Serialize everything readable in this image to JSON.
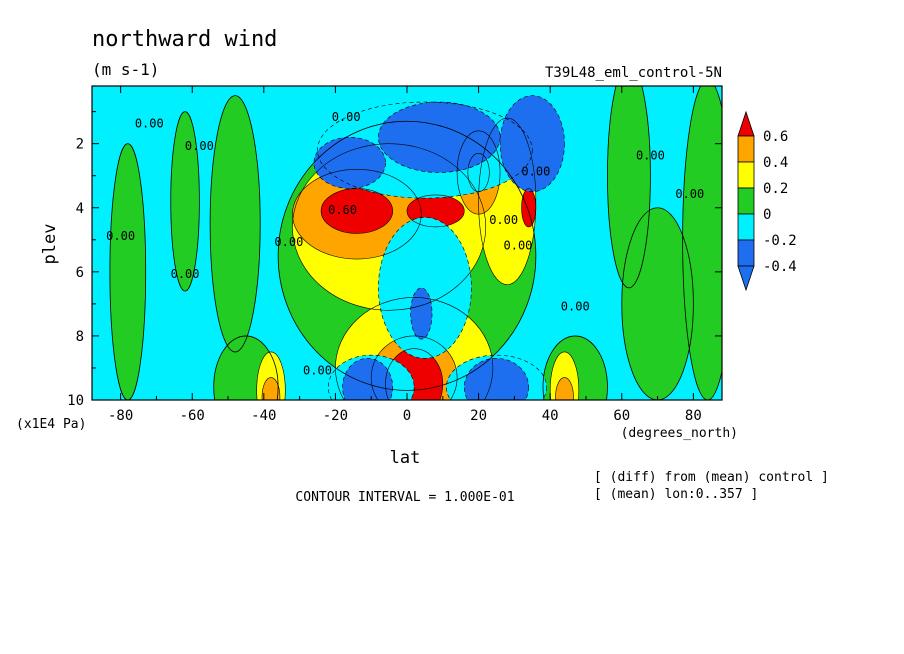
{
  "chart_data": {
    "type": "heatmap",
    "title": "northward wind",
    "units": "(m s-1)",
    "run_label": "T39L48_eml_control-5N",
    "xlabel": "lat",
    "xunits": "(degrees_north)",
    "ylabel": "plev",
    "yunits": "(x1E4 Pa)",
    "xlim": [
      -88,
      88
    ],
    "ylim": [
      0.2,
      10
    ],
    "y_inverted": true,
    "xticks": [
      -80,
      -60,
      -40,
      -20,
      0,
      20,
      40,
      60,
      80
    ],
    "yticks": [
      2,
      4,
      6,
      8,
      10
    ],
    "contour_interval_text": "CONTOUR INTERVAL = 1.000E-01",
    "notes": [
      "[ (diff) from (mean) control ]",
      "[ (mean) lon:0..357 ]"
    ],
    "colorbar": {
      "labels": [
        "0.6",
        "0.4",
        "0.2",
        "0",
        "-0.2",
        "-0.4"
      ],
      "levels": [
        -0.4,
        -0.2,
        0,
        0.2,
        0.4,
        0.6
      ],
      "colors": [
        "#1e6ef0",
        "#00f0ff",
        "#22cc22",
        "#ffff00",
        "#ffa500",
        "#ee0000"
      ]
    },
    "contour_labels": [
      {
        "text": "0.00",
        "x": -72,
        "y": 1.5
      },
      {
        "text": "0.00",
        "x": -58,
        "y": 2.2
      },
      {
        "text": "0.00",
        "x": -80,
        "y": 5.0
      },
      {
        "text": "0.00",
        "x": -62,
        "y": 6.2
      },
      {
        "text": "0.00",
        "x": -33,
        "y": 5.2
      },
      {
        "text": "0.00",
        "x": -25,
        "y": 9.2
      },
      {
        "text": "0.00",
        "x": -17,
        "y": 1.3
      },
      {
        "text": "0.00",
        "x": 36,
        "y": 3.0
      },
      {
        "text": "0.00",
        "x": 27,
        "y": 4.5
      },
      {
        "text": "0.00",
        "x": 31,
        "y": 5.3
      },
      {
        "text": "0.00",
        "x": 47,
        "y": 7.2
      },
      {
        "text": "0.00",
        "x": 68,
        "y": 2.5
      },
      {
        "text": "0.00",
        "x": 79,
        "y": 3.7
      },
      {
        "text": "0.60",
        "x": -18,
        "y": 4.2
      }
    ],
    "blobs": [
      {
        "cx": -78,
        "cy": 6.0,
        "rx": 5,
        "ry": 4.0,
        "v": 0
      },
      {
        "cx": -62,
        "cy": 3.8,
        "rx": 4,
        "ry": 2.8,
        "v": 0
      },
      {
        "cx": -48,
        "cy": 4.5,
        "rx": 7,
        "ry": 4.0,
        "v": 0
      },
      {
        "cx": -45,
        "cy": 9.6,
        "rx": 9,
        "ry": 1.6,
        "v": 0
      },
      {
        "cx": 47,
        "cy": 9.6,
        "rx": 9,
        "ry": 1.6,
        "v": 0
      },
      {
        "cx": 70,
        "cy": 7.0,
        "rx": 10,
        "ry": 3.0,
        "v": 0
      },
      {
        "cx": 62,
        "cy": 3.0,
        "rx": 6,
        "ry": 3.5,
        "v": 0
      },
      {
        "cx": 84,
        "cy": 5.0,
        "rx": 7,
        "ry": 5.0,
        "v": 0
      },
      {
        "cx": 0,
        "cy": 5.5,
        "rx": 36,
        "ry": 4.2,
        "v": 0
      },
      {
        "cx": -38,
        "cy": 9.7,
        "rx": 4,
        "ry": 1.2,
        "v": 0.2
      },
      {
        "cx": -38,
        "cy": 9.9,
        "rx": 2.5,
        "ry": 0.6,
        "v": 0.4
      },
      {
        "cx": 44,
        "cy": 9.7,
        "rx": 4,
        "ry": 1.2,
        "v": 0.2
      },
      {
        "cx": 44,
        "cy": 9.9,
        "rx": 2.5,
        "ry": 0.6,
        "v": 0.4
      },
      {
        "cx": -5,
        "cy": 4.6,
        "rx": 27,
        "ry": 2.6,
        "v": 0.2
      },
      {
        "cx": 28,
        "cy": 3.8,
        "rx": 8,
        "ry": 2.6,
        "v": 0.2
      },
      {
        "cx": 2,
        "cy": 9.0,
        "rx": 22,
        "ry": 2.2,
        "v": 0.2
      },
      {
        "cx": -14,
        "cy": 4.2,
        "rx": 18,
        "ry": 1.4,
        "v": 0.4
      },
      {
        "cx": 20,
        "cy": 2.9,
        "rx": 6,
        "ry": 1.3,
        "v": 0.4
      },
      {
        "cx": 2,
        "cy": 9.3,
        "rx": 12,
        "ry": 1.3,
        "v": 0.4
      },
      {
        "cx": -14,
        "cy": 4.1,
        "rx": 10,
        "ry": 0.7,
        "v": 0.6
      },
      {
        "cx": 20,
        "cy": 2.9,
        "rx": 3,
        "ry": 0.6,
        "v": 0.6
      },
      {
        "cx": 2,
        "cy": 9.5,
        "rx": 8,
        "ry": 1.1,
        "v": 0.6
      },
      {
        "cx": 8,
        "cy": 4.1,
        "rx": 8,
        "ry": 0.5,
        "v": 0.6
      },
      {
        "cx": 34,
        "cy": 4.0,
        "rx": 2,
        "ry": 0.6,
        "v": 0.6
      },
      {
        "cx": 5,
        "cy": 6.5,
        "rx": 13,
        "ry": 2.2,
        "v": -0.2
      },
      {
        "cx": 5,
        "cy": 2.2,
        "rx": 30,
        "ry": 1.5,
        "v": -0.2
      },
      {
        "cx": -10,
        "cy": 9.6,
        "rx": 12,
        "ry": 1.0,
        "v": -0.2
      },
      {
        "cx": 25,
        "cy": 9.6,
        "rx": 14,
        "ry": 1.0,
        "v": -0.2
      },
      {
        "cx": 9,
        "cy": 1.8,
        "rx": 17,
        "ry": 1.1,
        "v": -0.4
      },
      {
        "cx": 35,
        "cy": 2.0,
        "rx": 9,
        "ry": 1.5,
        "v": -0.4
      },
      {
        "cx": -16,
        "cy": 2.6,
        "rx": 10,
        "ry": 0.8,
        "v": -0.4
      },
      {
        "cx": -11,
        "cy": 9.6,
        "rx": 7,
        "ry": 0.9,
        "v": -0.4
      },
      {
        "cx": 25,
        "cy": 9.6,
        "rx": 9,
        "ry": 0.9,
        "v": -0.4
      },
      {
        "cx": 4,
        "cy": 7.3,
        "rx": 3,
        "ry": 0.8,
        "v": -0.4
      }
    ]
  }
}
